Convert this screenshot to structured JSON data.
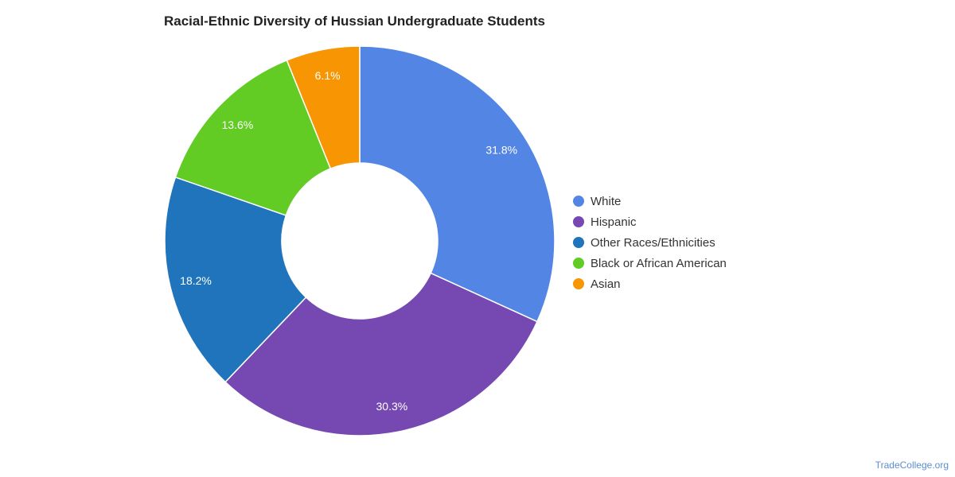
{
  "chart_data": {
    "type": "pie",
    "title": "Racial-Ethnic Diversity of Hussian Undergraduate Students",
    "categories": [
      "White",
      "Hispanic",
      "Other Races/Ethnicities",
      "Black or African American",
      "Asian"
    ],
    "values": [
      31.8,
      30.3,
      18.2,
      13.6,
      6.1
    ],
    "value_labels": [
      "31.8%",
      "30.3%",
      "18.2%",
      "13.6%",
      "6.1%"
    ],
    "colors": [
      "#5386e4",
      "#7549b1",
      "#1f74bb",
      "#62cb24",
      "#f79502"
    ],
    "donut": true,
    "legend_position": "right"
  },
  "source": "TradeCollege.org"
}
